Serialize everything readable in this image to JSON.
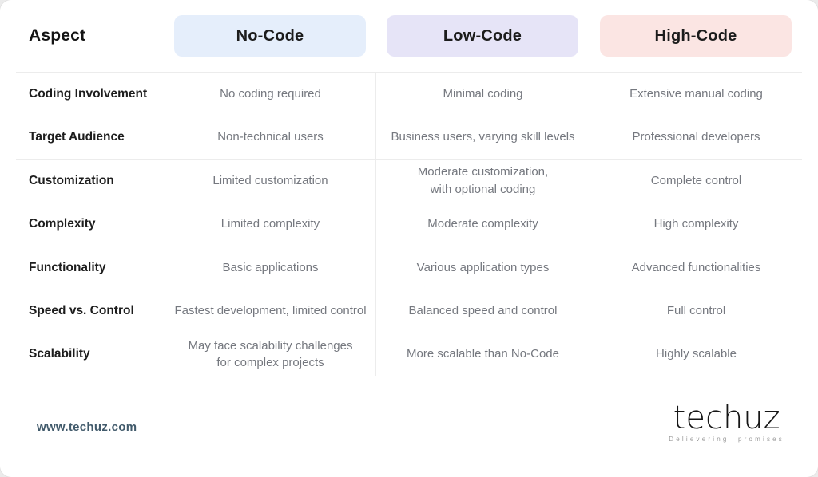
{
  "colors": {
    "card_bg": "#ffffff",
    "page_bg": "#ebebeb",
    "no_code_pill_bg": "#e5eefb",
    "low_code_pill_bg": "#e6e4f7",
    "high_code_pill_bg": "#fbe5e3",
    "cell_text": "#75787f",
    "label_text": "#1d1d1d",
    "website_text": "#415a6b"
  },
  "chart_data": {
    "type": "table",
    "title": "",
    "columns": [
      "Aspect",
      "No-Code",
      "Low-Code",
      "High-Code"
    ],
    "rows": [
      [
        "Coding Involvement",
        "No coding required",
        "Minimal coding",
        "Extensive manual coding"
      ],
      [
        "Target Audience",
        "Non-technical users",
        "Business users, varying skill levels",
        "Professional developers"
      ],
      [
        "Customization",
        "Limited customization",
        "Moderate customization,\nwith optional coding",
        "Complete control"
      ],
      [
        "Complexity",
        "Limited complexity",
        "Moderate complexity",
        "High complexity"
      ],
      [
        "Functionality",
        "Basic applications",
        "Various application types",
        "Advanced functionalities"
      ],
      [
        "Speed vs. Control",
        "Fastest development, limited control",
        "Balanced speed and control",
        "Full control"
      ],
      [
        "Scalability",
        "May face scalability challenges\nfor complex projects",
        "More scalable than No-Code",
        "Highly scalable"
      ]
    ]
  },
  "footer": {
    "website": "www.techuz.com",
    "logo_text": "techuz",
    "logo_tagline": "Delievering promises"
  }
}
